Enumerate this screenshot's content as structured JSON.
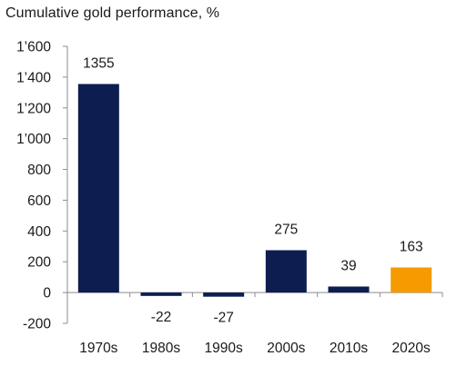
{
  "chart_data": {
    "type": "bar",
    "title": "Cumulative  gold performance, %",
    "categories": [
      "1970s",
      "1980s",
      "1990s",
      "2000s",
      "2010s",
      "2020s"
    ],
    "values": [
      1355,
      -22,
      -27,
      275,
      39,
      163
    ],
    "data_labels": [
      "1355",
      "-22",
      "-27",
      "275",
      "39",
      "163"
    ],
    "bar_colors": [
      "#0d1d4f",
      "#0d1d4f",
      "#0d1d4f",
      "#0d1d4f",
      "#0d1d4f",
      "#f59b00"
    ],
    "ylim": [
      -200,
      1600
    ],
    "yticks": [
      -200,
      0,
      200,
      400,
      600,
      800,
      1000,
      1200,
      1400,
      1600
    ],
    "ytick_labels": [
      "-200",
      "0",
      "200",
      "400",
      "600",
      "800",
      "1’000",
      "1’200",
      "1’400",
      "1’600"
    ],
    "grid": false,
    "legend": false,
    "xlabel": "",
    "ylabel": ""
  }
}
